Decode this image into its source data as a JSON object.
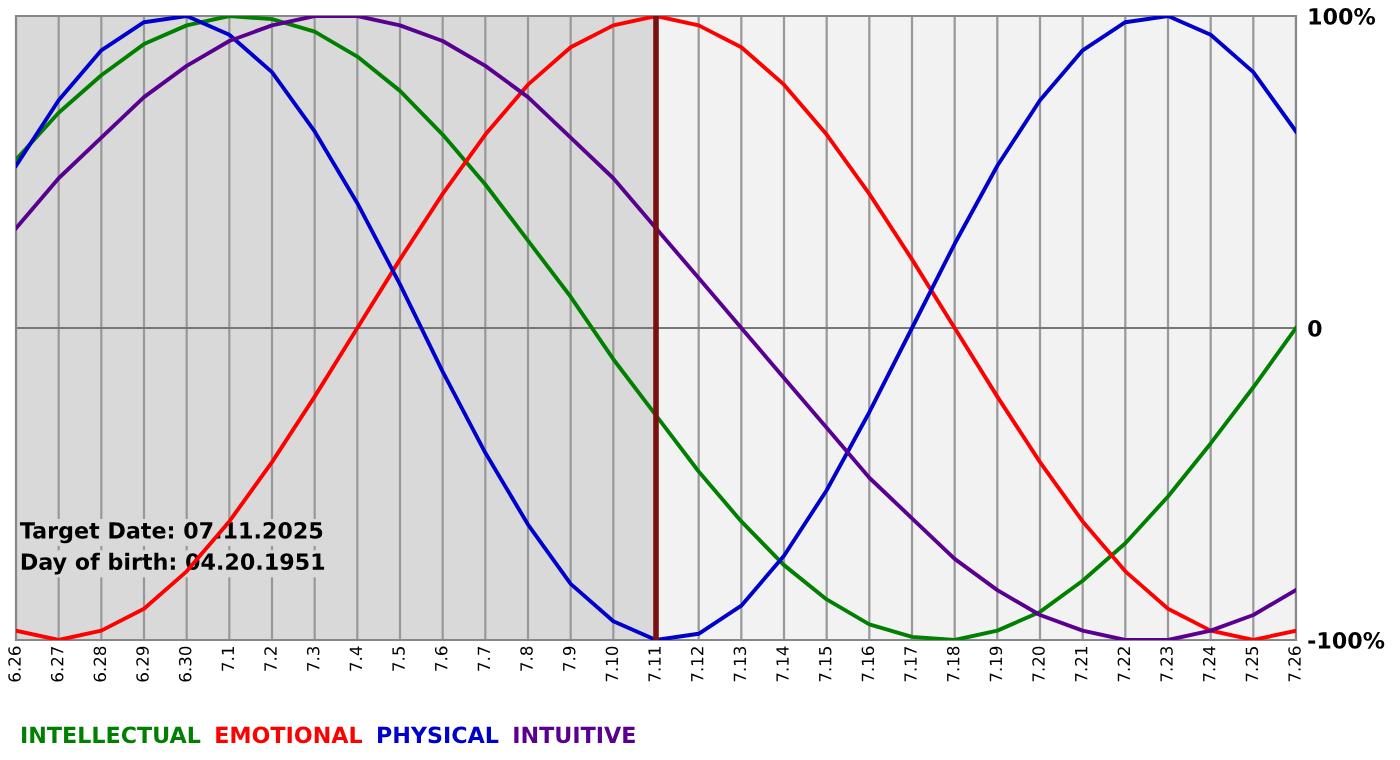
{
  "chart_data": {
    "type": "line",
    "categories": [
      "6.26",
      "6.27",
      "6.28",
      "6.29",
      "6.30",
      "7.1",
      "7.2",
      "7.3",
      "7.4",
      "7.5",
      "7.6",
      "7.7",
      "7.8",
      "7.9",
      "7.10",
      "7.11",
      "7.12",
      "7.13",
      "7.14",
      "7.15",
      "7.16",
      "7.17",
      "7.18",
      "7.19",
      "7.20",
      "7.21",
      "7.22",
      "7.23",
      "7.24",
      "7.25",
      "7.26"
    ],
    "series": [
      {
        "name": "INTELLECTUAL",
        "color": "#008000",
        "values": [
          54,
          69,
          81,
          91,
          97,
          100,
          99,
          95,
          87,
          76,
          62,
          46,
          28,
          10,
          -10,
          -28,
          -46,
          -62,
          -76,
          -87,
          -95,
          -99,
          -100,
          -97,
          -91,
          -81,
          -69,
          -54,
          -37,
          -19,
          0
        ]
      },
      {
        "name": "EMOTIONAL",
        "color": "#ff0000",
        "values": [
          -97,
          -100,
          -97,
          -90,
          -78,
          -62,
          -43,
          -22,
          0,
          22,
          43,
          62,
          78,
          90,
          97,
          100,
          97,
          90,
          78,
          62,
          43,
          22,
          0,
          -22,
          -43,
          -62,
          -78,
          -90,
          -97,
          -100,
          -97
        ]
      },
      {
        "name": "PHYSICAL",
        "color": "#0000cc",
        "values": [
          52,
          73,
          89,
          98,
          100,
          94,
          82,
          63,
          40,
          14,
          -14,
          -40,
          -63,
          -82,
          -94,
          -100,
          -98,
          -89,
          -73,
          -52,
          -27,
          0,
          27,
          52,
          73,
          89,
          98,
          100,
          94,
          82,
          63
        ]
      },
      {
        "name": "INTUITIVE",
        "color": "#5a0090",
        "values": [
          32,
          48,
          61,
          74,
          84,
          92,
          97,
          100,
          100,
          97,
          92,
          84,
          74,
          61,
          48,
          32,
          16,
          0,
          -16,
          -32,
          -48,
          -61,
          -74,
          -84,
          -92,
          -97,
          -100,
          -100,
          -97,
          -92,
          -84
        ]
      }
    ],
    "ylim": [
      -100,
      100
    ],
    "yticks": [
      {
        "value": 100,
        "label": "100%"
      },
      0,
      {
        "value": -100,
        "label": "-100%"
      }
    ],
    "ref_lines": [
      {
        "axis": "x",
        "value": "7.11",
        "color": "#7a1010"
      }
    ],
    "bands": [
      {
        "axis": "x",
        "from": "6.26",
        "to": "7.11",
        "color": "#d9d9d9"
      }
    ],
    "annotations": [
      "Target Date: 07.11.2025",
      "Day of birth: 04.20.1951"
    ],
    "grid": true,
    "legend": "bottom",
    "marker": "none",
    "line_style": "solid"
  }
}
